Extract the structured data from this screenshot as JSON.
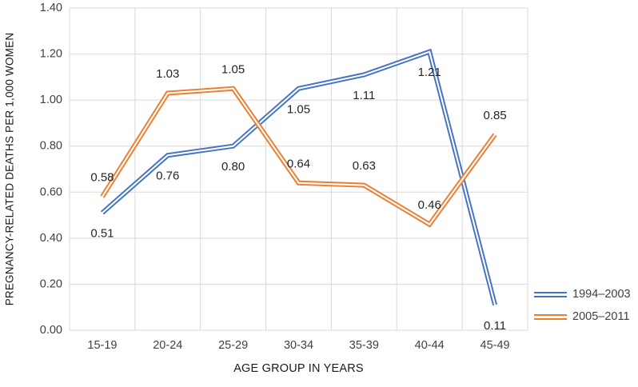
{
  "chart_data": {
    "type": "line",
    "title": "",
    "categories": [
      "15-19",
      "20-24",
      "25-29",
      "30-34",
      "35-39",
      "40-44",
      "45-49"
    ],
    "series": [
      {
        "name": "1994–2003",
        "color": "#4472C4",
        "values": [
          0.51,
          0.76,
          0.8,
          1.05,
          1.11,
          1.21,
          0.11
        ],
        "data_labels": [
          "0.51",
          "0.76",
          "0.80",
          "1.05",
          "1.11",
          "1.21",
          "0.11"
        ],
        "label_position": "below"
      },
      {
        "name": "2005–2011",
        "color": "#ED7D31",
        "values": [
          0.58,
          1.03,
          1.05,
          0.64,
          0.63,
          0.46,
          0.85
        ],
        "data_labels": [
          "0.58",
          "1.03",
          "1.05",
          "0.64",
          "0.63",
          "0.46",
          "0.85"
        ],
        "label_position": "above"
      }
    ],
    "xlabel": "AGE GROUP IN YEARS",
    "ylabel": "PREGNANCY-RELATED DEATHS PER 1,000 WOMEN",
    "ylim": [
      0,
      1.4
    ],
    "ytick_step": 0.2,
    "ytick_labels": [
      "0.00",
      "0.20",
      "0.40",
      "0.60",
      "0.80",
      "1.00",
      "1.20",
      "1.40"
    ],
    "grid": true,
    "legend_position": "right",
    "colors": {
      "gridline": "#D9D9D9",
      "tick_text": "#404040",
      "data_label_text": "#262626"
    }
  }
}
